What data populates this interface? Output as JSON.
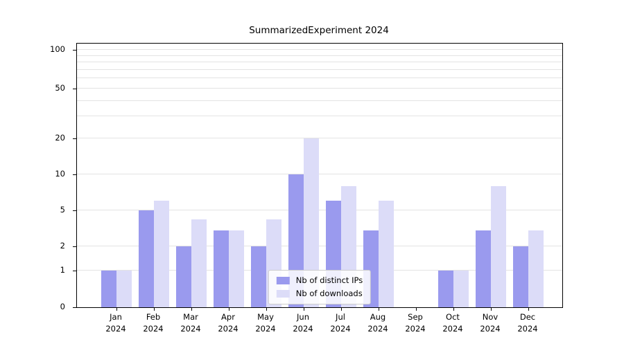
{
  "chart_data": {
    "type": "bar",
    "title": "SummarizedExperiment 2024",
    "categories": [
      {
        "month": "Jan",
        "year": "2024"
      },
      {
        "month": "Feb",
        "year": "2024"
      },
      {
        "month": "Mar",
        "year": "2024"
      },
      {
        "month": "Apr",
        "year": "2024"
      },
      {
        "month": "May",
        "year": "2024"
      },
      {
        "month": "Jun",
        "year": "2024"
      },
      {
        "month": "Jul",
        "year": "2024"
      },
      {
        "month": "Aug",
        "year": "2024"
      },
      {
        "month": "Sep",
        "year": "2024"
      },
      {
        "month": "Oct",
        "year": "2024"
      },
      {
        "month": "Nov",
        "year": "2024"
      },
      {
        "month": "Dec",
        "year": "2024"
      }
    ],
    "series": [
      {
        "name": "Nb of distinct IPs",
        "color": "#9a9aee",
        "values": [
          1,
          5,
          2,
          3,
          2,
          10,
          6,
          3,
          0,
          1,
          3,
          2
        ]
      },
      {
        "name": "Nb of downloads",
        "color": "#dcdcf8",
        "values": [
          1,
          6,
          4,
          3,
          4,
          20,
          8,
          6,
          0,
          1,
          8,
          3
        ]
      }
    ],
    "y_axis": {
      "ticks": [
        0,
        1,
        2,
        5,
        10,
        20,
        50,
        100
      ],
      "minor_gridlines": [
        30,
        40,
        60,
        70,
        80,
        90
      ],
      "scale": "log-like",
      "range": [
        0,
        100
      ]
    },
    "x_axis": {
      "label": "",
      "unit": "month"
    },
    "grid": true,
    "legend": {
      "position": "lower-center"
    }
  }
}
